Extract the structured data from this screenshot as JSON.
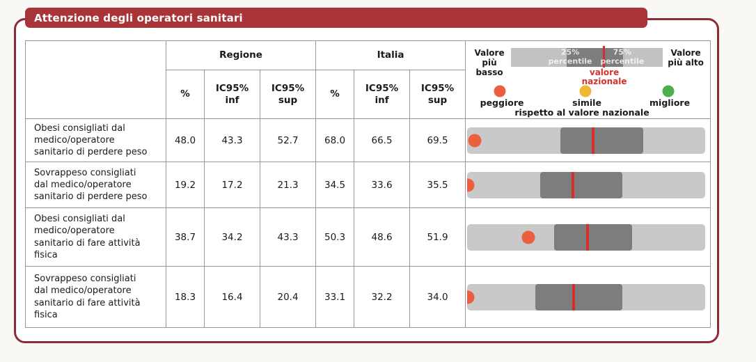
{
  "title": "Attenzione degli operatori sanitari",
  "colors": {
    "title_bg": "#A93437",
    "frame_border": "#8E2B33",
    "bar_light": "#C9C9C9",
    "bar_dark": "#7D7D7D",
    "national_line_red": "#D62E2C",
    "dot_worse": "#EB5F3F",
    "dot_similar": "#EFB832",
    "dot_better": "#4EAE54"
  },
  "table": {
    "group_headers": {
      "regione": "Regione",
      "italia": "Italia"
    },
    "sub_headers": {
      "pct": "%",
      "inf": "IC95%\ninf",
      "sup": "IC95%\nsup"
    },
    "rows": [
      {
        "label": "Obesi consigliati dal\nmedico/operatore\nsanitario di perdere peso",
        "regione": {
          "pct": "48.0",
          "inf": "43.3",
          "sup": "52.7"
        },
        "italia": {
          "pct": "68.0",
          "inf": "66.5",
          "sup": "69.5"
        },
        "bar": {
          "dot_pct": 3.2,
          "dark_start_pct": 39.2,
          "dark_end_pct": 74.0,
          "national_line_pct": 52.9,
          "dot_color": "#EB5F3F",
          "dot_meaning": "peggiore"
        }
      },
      {
        "label": "Sovrappeso consigliati\ndal medico/operatore\nsanitario di perdere peso",
        "regione": {
          "pct": "19.2",
          "inf": "17.2",
          "sup": "21.3"
        },
        "italia": {
          "pct": "34.5",
          "inf": "33.6",
          "sup": "35.5"
        },
        "bar": {
          "dot_pct": 0.3,
          "dark_start_pct": 30.7,
          "dark_end_pct": 65.2,
          "national_line_pct": 44.4,
          "dot_color": "#EB5F3F",
          "dot_meaning": "peggiore"
        }
      },
      {
        "label": "Obesi consigliati dal\nmedico/operatore\nsanitario di fare attività\nfisica",
        "regione": {
          "pct": "38.7",
          "inf": "34.2",
          "sup": "43.3"
        },
        "italia": {
          "pct": "50.3",
          "inf": "48.6",
          "sup": "51.9"
        },
        "bar": {
          "dot_pct": 25.7,
          "dark_start_pct": 36.5,
          "dark_end_pct": 69.3,
          "national_line_pct": 50.6,
          "dot_color": "#EB5F3F",
          "dot_meaning": "peggiore"
        }
      },
      {
        "label": "Sovrappeso consigliati\ndal medico/operatore\nsanitario di fare attività\nfisica",
        "regione": {
          "pct": "18.3",
          "inf": "16.4",
          "sup": "20.4"
        },
        "italia": {
          "pct": "33.1",
          "inf": "32.2",
          "sup": "34.0"
        },
        "bar": {
          "dot_pct": 0.3,
          "dark_start_pct": 28.7,
          "dark_end_pct": 65.2,
          "national_line_pct": 44.7,
          "dot_color": "#EB5F3F",
          "dot_meaning": "peggiore"
        }
      }
    ]
  },
  "legend": {
    "low_label": "Valore\npiù basso",
    "high_label": "Valore\npiù alto",
    "p25_label": "25%\npercentile",
    "p75_label": "75%\npercentile",
    "national_label": "valore\nnazionale",
    "footnote": "rispetto al valore nazionale",
    "dots": [
      {
        "label": "peggiore",
        "color": "#EB5F3F"
      },
      {
        "label": "simile",
        "color": "#EFB832"
      },
      {
        "label": "migliore",
        "color": "#4EAE54"
      }
    ],
    "bar": {
      "dark_start_pct": 36.6,
      "dark_end_pct": 74.0,
      "national_line_pct": 61.1,
      "p25_pos_pct": 39.0,
      "p75_pos_pct": 73.3
    }
  },
  "chart_data": {
    "type": "table",
    "title": "Attenzione degli operatori sanitari",
    "column_groups": [
      "Regione",
      "Italia"
    ],
    "columns": [
      "%",
      "IC95% inf",
      "IC95% sup",
      "%",
      "IC95% inf",
      "IC95% sup"
    ],
    "rows": [
      {
        "label": "Obesi consigliati dal medico/operatore sanitario di perdere peso",
        "regione": {
          "pct": 48.0,
          "ic95_inf": 43.3,
          "ic95_sup": 52.7
        },
        "italia": {
          "pct": 68.0,
          "ic95_inf": 66.5,
          "ic95_sup": 69.5
        },
        "confronto_con_valore_nazionale": "peggiore"
      },
      {
        "label": "Sovrappeso consigliati dal medico/operatore sanitario di perdere peso",
        "regione": {
          "pct": 19.2,
          "ic95_inf": 17.2,
          "ic95_sup": 21.3
        },
        "italia": {
          "pct": 34.5,
          "ic95_inf": 33.6,
          "ic95_sup": 35.5
        },
        "confronto_con_valore_nazionale": "peggiore"
      },
      {
        "label": "Obesi consigliati dal medico/operatore sanitario di fare attività fisica",
        "regione": {
          "pct": 38.7,
          "ic95_inf": 34.2,
          "ic95_sup": 43.3
        },
        "italia": {
          "pct": 50.3,
          "ic95_inf": 48.6,
          "ic95_sup": 51.9
        },
        "confronto_con_valore_nazionale": "peggiore"
      },
      {
        "label": "Sovrappeso consigliati dal medico/operatore sanitario di fare attività fisica",
        "regione": {
          "pct": 18.3,
          "ic95_inf": 16.4,
          "ic95_sup": 20.4
        },
        "italia": {
          "pct": 33.1,
          "ic95_inf": 32.2,
          "ic95_sup": 34.0
        },
        "confronto_con_valore_nazionale": "peggiore"
      }
    ],
    "legend": {
      "bar": "distribuzione regionale: valore più basso → valore più alto, 25%-75% percentile (banda scura), valore nazionale (linea rossa)",
      "dots": {
        "peggiore": "arancione",
        "simile": "giallo",
        "migliore": "verde"
      },
      "note": "rispetto al valore nazionale"
    }
  }
}
